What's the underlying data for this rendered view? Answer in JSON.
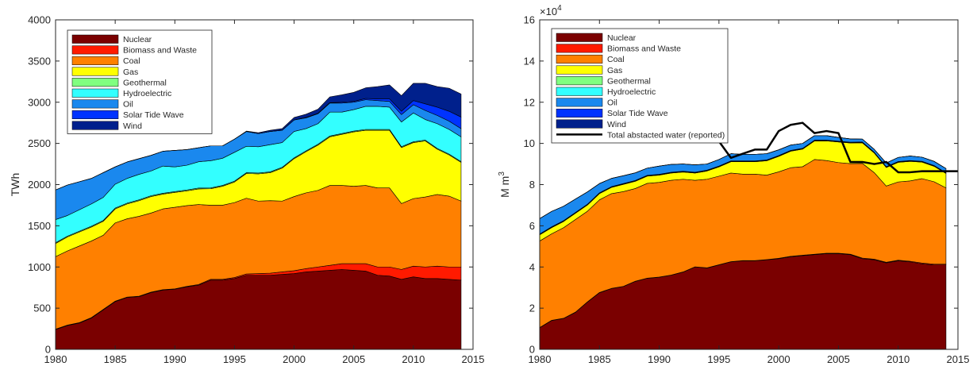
{
  "colors": {
    "Nuclear": "#7a0000",
    "Biomass and Waste": "#ff1a00",
    "Coal": "#ff8000",
    "Gas": "#ffff00",
    "Geothermal": "#80ff80",
    "Hydroelectric": "#33ffff",
    "Oil": "#1a88ee",
    "Solar Tide Wave": "#0033ff",
    "Wind": "#00208c",
    "Total abstacted water (reported)": "#000000"
  },
  "chart_data": [
    {
      "type": "area",
      "stacked": true,
      "xlabel": "",
      "ylabel": "TWh",
      "xlim": [
        1980,
        2015
      ],
      "ylim": [
        0,
        4000
      ],
      "xticks": [
        1980,
        1985,
        1990,
        1995,
        2000,
        2005,
        2010,
        2015
      ],
      "yticks": [
        0,
        500,
        1000,
        1500,
        2000,
        2500,
        3000,
        3500,
        4000
      ],
      "grid": false,
      "legend_position": "top-left",
      "x": [
        1980,
        1981,
        1982,
        1983,
        1984,
        1985,
        1986,
        1987,
        1988,
        1989,
        1990,
        1991,
        1992,
        1993,
        1994,
        1995,
        1996,
        1997,
        1998,
        1999,
        2000,
        2001,
        2002,
        2003,
        2004,
        2005,
        2006,
        2007,
        2008,
        2009,
        2010,
        2011,
        2012,
        2013,
        2014
      ],
      "series": [
        {
          "name": "Nuclear",
          "values": [
            240,
            290,
            320,
            380,
            480,
            580,
            630,
            640,
            690,
            720,
            730,
            760,
            780,
            840,
            840,
            860,
            900,
            900,
            900,
            910,
            920,
            940,
            950,
            960,
            970,
            960,
            950,
            900,
            890,
            850,
            880,
            860,
            860,
            850,
            840
          ]
        },
        {
          "name": "Biomass and Waste",
          "values": [
            5,
            5,
            5,
            5,
            5,
            5,
            5,
            5,
            5,
            5,
            5,
            5,
            8,
            10,
            10,
            12,
            15,
            20,
            25,
            30,
            35,
            40,
            50,
            60,
            70,
            80,
            90,
            100,
            110,
            120,
            130,
            140,
            150,
            150,
            160
          ]
        },
        {
          "name": "Coal",
          "values": [
            880,
            900,
            930,
            930,
            900,
            950,
            950,
            970,
            960,
            980,
            990,
            980,
            970,
            900,
            900,
            910,
            920,
            880,
            880,
            860,
            900,
            920,
            930,
            970,
            950,
            940,
            950,
            960,
            960,
            800,
            820,
            850,
            870,
            860,
            800
          ]
        },
        {
          "name": "Gas",
          "values": [
            160,
            170,
            170,
            170,
            170,
            170,
            180,
            190,
            200,
            180,
            180,
            180,
            190,
            200,
            230,
            250,
            300,
            330,
            340,
            400,
            460,
            500,
            550,
            590,
            620,
            660,
            670,
            700,
            700,
            680,
            680,
            680,
            550,
            500,
            470
          ]
        },
        {
          "name": "Geothermal",
          "values": [
            10,
            10,
            10,
            10,
            10,
            10,
            10,
            10,
            10,
            10,
            10,
            10,
            10,
            10,
            10,
            10,
            10,
            10,
            10,
            10,
            10,
            10,
            10,
            10,
            10,
            10,
            10,
            10,
            10,
            10,
            10,
            10,
            10,
            10,
            10
          ]
        },
        {
          "name": "Hydroelectric",
          "values": [
            280,
            250,
            260,
            270,
            280,
            290,
            300,
            310,
            300,
            330,
            300,
            300,
            320,
            330,
            330,
            350,
            320,
            320,
            330,
            300,
            320,
            270,
            250,
            290,
            260,
            260,
            280,
            280,
            270,
            300,
            350,
            250,
            300,
            300,
            300
          ]
        },
        {
          "name": "Oil",
          "values": [
            360,
            370,
            340,
            310,
            300,
            210,
            200,
            190,
            190,
            180,
            200,
            190,
            170,
            180,
            150,
            160,
            180,
            160,
            160,
            150,
            140,
            130,
            120,
            110,
            110,
            90,
            80,
            70,
            70,
            90,
            100,
            110,
            100,
            100,
            100
          ]
        },
        {
          "name": "Solar Tide Wave",
          "values": [
            0,
            0,
            0,
            0,
            0,
            0,
            0,
            0,
            0,
            0,
            0,
            0,
            0,
            0,
            0,
            0,
            0,
            0,
            0,
            0,
            0,
            5,
            5,
            5,
            10,
            10,
            15,
            20,
            30,
            40,
            50,
            80,
            100,
            120,
            140
          ]
        },
        {
          "name": "Wind",
          "values": [
            0,
            0,
            0,
            0,
            0,
            0,
            0,
            0,
            0,
            0,
            0,
            0,
            0,
            0,
            0,
            0,
            5,
            10,
            15,
            20,
            30,
            40,
            50,
            70,
            90,
            110,
            130,
            150,
            170,
            190,
            210,
            250,
            250,
            280,
            280
          ]
        }
      ]
    },
    {
      "type": "area",
      "stacked": true,
      "xlabel": "",
      "ylabel": "M m",
      "ylabel_superscript": "3",
      "exponent_label": "×10",
      "exponent_superscript": "4",
      "xlim": [
        1980,
        2015
      ],
      "ylim": [
        0,
        16
      ],
      "xticks": [
        1980,
        1985,
        1990,
        1995,
        2000,
        2005,
        2010,
        2015
      ],
      "yticks": [
        0,
        2,
        4,
        6,
        8,
        10,
        12,
        14,
        16
      ],
      "grid": false,
      "legend_position": "top-left",
      "x": [
        1980,
        1981,
        1982,
        1983,
        1984,
        1985,
        1986,
        1987,
        1988,
        1989,
        1990,
        1991,
        1992,
        1993,
        1994,
        1995,
        1996,
        1997,
        1998,
        1999,
        2000,
        2001,
        2002,
        2003,
        2004,
        2005,
        2006,
        2007,
        2008,
        2009,
        2010,
        2011,
        2012,
        2013,
        2014
      ],
      "series": [
        {
          "name": "Nuclear",
          "values": [
            1.05,
            1.4,
            1.5,
            1.8,
            2.3,
            2.75,
            2.95,
            3.05,
            3.3,
            3.45,
            3.5,
            3.6,
            3.75,
            4.0,
            3.95,
            4.1,
            4.25,
            4.3,
            4.3,
            4.35,
            4.4,
            4.5,
            4.55,
            4.6,
            4.65,
            4.65,
            4.6,
            4.4,
            4.35,
            4.2,
            4.3,
            4.25,
            4.15,
            4.1,
            4.1
          ]
        },
        {
          "name": "Biomass and Waste",
          "values": [
            0.01,
            0.01,
            0.01,
            0.01,
            0.01,
            0.01,
            0.01,
            0.01,
            0.01,
            0.01,
            0.01,
            0.01,
            0.01,
            0.01,
            0.01,
            0.01,
            0.01,
            0.01,
            0.01,
            0.01,
            0.02,
            0.02,
            0.02,
            0.02,
            0.02,
            0.02,
            0.02,
            0.03,
            0.03,
            0.03,
            0.03,
            0.03,
            0.04,
            0.04,
            0.04
          ]
        },
        {
          "name": "Coal",
          "values": [
            4.2,
            4.2,
            4.4,
            4.5,
            4.4,
            4.5,
            4.6,
            4.6,
            4.5,
            4.6,
            4.6,
            4.6,
            4.5,
            4.2,
            4.3,
            4.3,
            4.3,
            4.2,
            4.2,
            4.1,
            4.2,
            4.3,
            4.3,
            4.6,
            4.5,
            4.4,
            4.4,
            4.6,
            4.2,
            3.7,
            3.8,
            3.9,
            4.1,
            4.0,
            3.7
          ]
        },
        {
          "name": "Gas",
          "values": [
            0.3,
            0.3,
            0.3,
            0.3,
            0.3,
            0.3,
            0.3,
            0.35,
            0.35,
            0.35,
            0.35,
            0.35,
            0.35,
            0.35,
            0.4,
            0.45,
            0.55,
            0.6,
            0.6,
            0.7,
            0.75,
            0.8,
            0.85,
            0.9,
            0.95,
            1.0,
            1.0,
            1.0,
            0.95,
            0.9,
            0.95,
            0.95,
            0.8,
            0.75,
            0.7
          ]
        },
        {
          "name": "Geothermal",
          "values": [
            0.02,
            0.02,
            0.02,
            0.02,
            0.02,
            0.02,
            0.02,
            0.02,
            0.02,
            0.02,
            0.02,
            0.02,
            0.02,
            0.02,
            0.02,
            0.02,
            0.02,
            0.02,
            0.02,
            0.02,
            0.02,
            0.02,
            0.02,
            0.02,
            0.02,
            0.02,
            0.02,
            0.02,
            0.02,
            0.02,
            0.02,
            0.02,
            0.02,
            0.02,
            0.02
          ]
        },
        {
          "name": "Hydroelectric",
          "values": [
            0.02,
            0.02,
            0.02,
            0.02,
            0.02,
            0.02,
            0.02,
            0.02,
            0.02,
            0.02,
            0.02,
            0.02,
            0.02,
            0.02,
            0.02,
            0.02,
            0.02,
            0.02,
            0.02,
            0.02,
            0.02,
            0.02,
            0.02,
            0.02,
            0.02,
            0.02,
            0.02,
            0.02,
            0.02,
            0.02,
            0.02,
            0.02,
            0.02,
            0.02,
            0.02
          ]
        },
        {
          "name": "Oil",
          "values": [
            0.75,
            0.75,
            0.7,
            0.65,
            0.6,
            0.45,
            0.4,
            0.38,
            0.37,
            0.35,
            0.4,
            0.38,
            0.35,
            0.36,
            0.3,
            0.32,
            0.35,
            0.32,
            0.32,
            0.3,
            0.28,
            0.26,
            0.24,
            0.22,
            0.22,
            0.18,
            0.16,
            0.14,
            0.14,
            0.18,
            0.2,
            0.22,
            0.2,
            0.2,
            0.2
          ]
        },
        {
          "name": "Solar Tide Wave",
          "values": [
            0,
            0,
            0,
            0,
            0,
            0,
            0,
            0,
            0,
            0,
            0,
            0,
            0,
            0,
            0,
            0,
            0,
            0,
            0,
            0,
            0,
            0,
            0,
            0,
            0,
            0,
            0,
            0,
            0,
            0,
            0,
            0,
            0,
            0,
            0
          ]
        },
        {
          "name": "Wind",
          "values": [
            0,
            0,
            0,
            0,
            0,
            0,
            0,
            0,
            0,
            0,
            0,
            0,
            0,
            0,
            0,
            0,
            0,
            0,
            0,
            0,
            0,
            0,
            0,
            0,
            0,
            0,
            0,
            0,
            0,
            0,
            0,
            0,
            0,
            0,
            0
          ]
        }
      ],
      "line": {
        "name": "Total abstacted water (reported)",
        "x": [
          1995,
          1996,
          1997,
          1998,
          1999,
          2000,
          2001,
          2002,
          2003,
          2004,
          2005,
          2006,
          2007,
          2008,
          2009,
          2010,
          2011,
          2012,
          2013,
          2014,
          2015
        ],
        "values": [
          10.1,
          9.3,
          9.5,
          9.7,
          9.7,
          10.6,
          10.9,
          11.0,
          10.5,
          10.6,
          10.5,
          9.1,
          9.1,
          9.0,
          9.1,
          8.6,
          8.6,
          8.65,
          8.65,
          8.65,
          8.65
        ]
      }
    }
  ]
}
